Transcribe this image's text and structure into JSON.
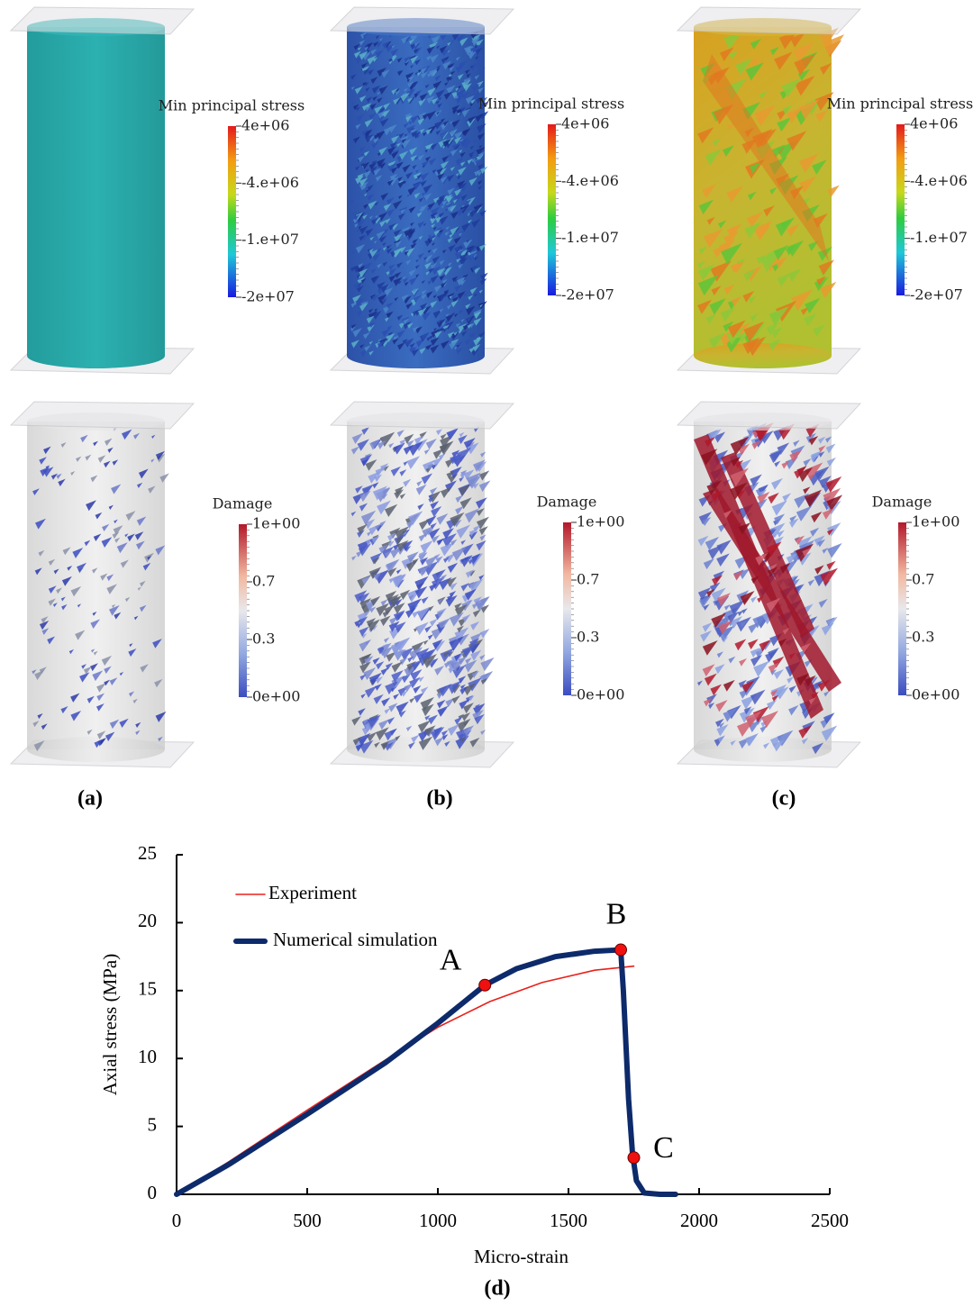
{
  "panels": [
    {
      "label": "(a)",
      "stress_legend": {
        "title": "Min principal stress",
        "ticks": [
          "4e+06",
          "-4.e+06",
          "-1.e+07",
          "-2e+07"
        ]
      },
      "damage_legend": {
        "title": "Damage",
        "ticks": [
          "1e+00",
          "0.7",
          "0.3",
          "0e+00"
        ]
      }
    },
    {
      "label": "(b)",
      "stress_legend": {
        "title": "Min principal stress",
        "ticks": [
          "4e+06",
          "-4.e+06",
          "-1.e+07",
          "-2e+07"
        ]
      },
      "damage_legend": {
        "title": "Damage",
        "ticks": [
          "1e+00",
          "0.7",
          "0.3",
          "0e+00"
        ]
      }
    },
    {
      "label": "(c)",
      "stress_legend": {
        "title": "Min principal stress",
        "ticks": [
          "4e+06",
          "-4.e+06",
          "-1.e+07",
          "-2e+07"
        ]
      },
      "damage_legend": {
        "title": "Damage",
        "ticks": [
          "1e+00",
          "0.7",
          "0.3",
          "0e+00"
        ]
      }
    }
  ],
  "chart_data": {
    "type": "line",
    "label": "(d)",
    "x_label": "Micro-strain",
    "y_label": "Axial stress (MPa)",
    "xlim": [
      0,
      2500
    ],
    "xticks": [
      0,
      500,
      1000,
      1500,
      2000,
      2500
    ],
    "ylim": [
      0,
      25
    ],
    "yticks": [
      0,
      5,
      10,
      15,
      20,
      25
    ],
    "series": [
      {
        "name": "Experiment",
        "color": "#e8201a",
        "x": [
          0,
          200,
          500,
          800,
          1000,
          1200,
          1400,
          1600,
          1750
        ],
        "values": [
          0,
          2.4,
          6.2,
          9.9,
          12.3,
          14.2,
          15.6,
          16.5,
          16.8
        ]
      },
      {
        "name": "Numerical simulation",
        "color": "#0d2a6b",
        "x": [
          0,
          200,
          500,
          800,
          1000,
          1180,
          1300,
          1450,
          1600,
          1700,
          1710,
          1720,
          1730,
          1745,
          1760,
          1790,
          1850,
          1910
        ],
        "values": [
          0,
          2.2,
          5.9,
          9.7,
          12.6,
          15.4,
          16.6,
          17.5,
          17.9,
          18.0,
          15,
          11,
          7,
          3,
          1,
          0.1,
          0,
          0
        ]
      }
    ],
    "annotations": [
      {
        "text": "A",
        "x": 1180,
        "y": 15.4
      },
      {
        "text": "B",
        "x": 1700,
        "y": 18.0
      },
      {
        "text": "C",
        "x": 1750,
        "y": 2.7
      }
    ]
  }
}
